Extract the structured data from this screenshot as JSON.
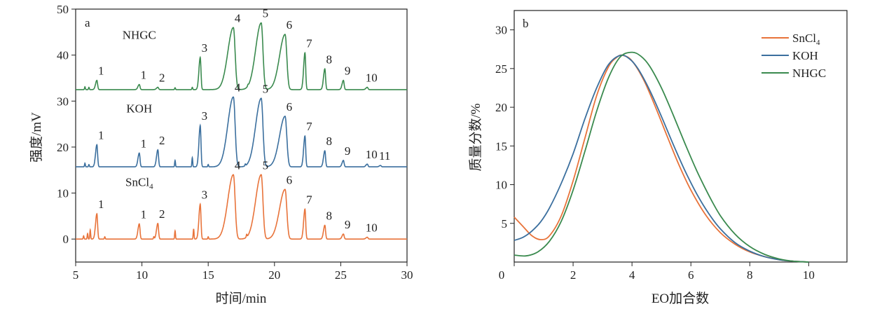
{
  "chart_data": [
    {
      "type": "line",
      "panel": "a",
      "xlabel": "时间/min",
      "ylabel": "强度/mV",
      "xlim": [
        5,
        30
      ],
      "ylim": [
        -5,
        50
      ],
      "xticks": [
        "5",
        "10",
        "15",
        "20",
        "25",
        "30"
      ],
      "yticks": [
        "0",
        "10",
        "20",
        "30",
        "40",
        "50"
      ],
      "series": [
        {
          "name": "NHGC",
          "color": "#3a8a4e",
          "baseline": 32.5,
          "peaks": [
            {
              "label": "1",
              "x": 6.6,
              "height": 2.0
            },
            {
              "label": "1",
              "x": 9.8,
              "height": 1.1
            },
            {
              "label": "2",
              "x": 11.2,
              "height": 0.5
            },
            {
              "label": "3",
              "x": 14.4,
              "height": 7.0
            },
            {
              "label": "4",
              "x": 16.9,
              "height": 13.5
            },
            {
              "label": "5",
              "x": 19.0,
              "height": 14.5
            },
            {
              "label": "6",
              "x": 20.8,
              "height": 12.0
            },
            {
              "label": "7",
              "x": 22.3,
              "height": 8.0
            },
            {
              "label": "8",
              "x": 23.8,
              "height": 4.5
            },
            {
              "label": "9",
              "x": 25.2,
              "height": 2.0
            },
            {
              "label": "10",
              "x": 27.0,
              "height": 0.5
            }
          ],
          "minor": [
            {
              "x": 5.7,
              "h": 0.6
            },
            {
              "x": 6.0,
              "h": 0.5
            },
            {
              "x": 12.5,
              "h": 0.4
            },
            {
              "x": 13.8,
              "h": 0.5
            },
            {
              "x": 18.0,
              "h": 0.3
            }
          ]
        },
        {
          "name": "KOH",
          "color": "#3b6f9e",
          "baseline": 15.7,
          "peaks": [
            {
              "label": "1",
              "x": 6.6,
              "height": 4.8
            },
            {
              "label": "1",
              "x": 9.8,
              "height": 3.0
            },
            {
              "label": "2",
              "x": 11.2,
              "height": 3.7
            },
            {
              "label": "3",
              "x": 14.4,
              "height": 9.0
            },
            {
              "label": "4",
              "x": 16.9,
              "height": 15.2
            },
            {
              "label": "5",
              "x": 19.0,
              "height": 14.9
            },
            {
              "label": "6",
              "x": 20.8,
              "height": 11.0
            },
            {
              "label": "7",
              "x": 22.3,
              "height": 6.7
            },
            {
              "label": "8",
              "x": 23.8,
              "height": 3.5
            },
            {
              "label": "9",
              "x": 25.2,
              "height": 1.4
            },
            {
              "label": "10",
              "x": 27.0,
              "height": 0.6
            },
            {
              "label": "11",
              "x": 28.0,
              "height": 0.3
            }
          ],
          "minor": [
            {
              "x": 5.7,
              "h": 0.8
            },
            {
              "x": 6.0,
              "h": 0.5
            },
            {
              "x": 12.5,
              "h": 1.4
            },
            {
              "x": 13.8,
              "h": 2.0
            },
            {
              "x": 15.0,
              "h": 0.5
            },
            {
              "x": 17.8,
              "h": 0.4
            }
          ]
        },
        {
          "name": "SnCl4",
          "color": "#e8733a",
          "baseline": 0.0,
          "peaks": [
            {
              "label": "1",
              "x": 6.6,
              "height": 5.5
            },
            {
              "label": "1",
              "x": 9.8,
              "height": 3.3
            },
            {
              "label": "2",
              "x": 11.2,
              "height": 3.4
            },
            {
              "label": "3",
              "x": 14.4,
              "height": 7.6
            },
            {
              "label": "4",
              "x": 16.9,
              "height": 14.0
            },
            {
              "label": "5",
              "x": 19.0,
              "height": 14.0
            },
            {
              "label": "6",
              "x": 20.8,
              "height": 10.8
            },
            {
              "label": "7",
              "x": 22.3,
              "height": 6.5
            },
            {
              "label": "8",
              "x": 23.8,
              "height": 3.0
            },
            {
              "label": "9",
              "x": 25.2,
              "height": 1.1
            },
            {
              "label": "10",
              "x": 27.0,
              "height": 0.4
            }
          ],
          "minor": [
            {
              "x": 5.6,
              "h": 0.7
            },
            {
              "x": 5.9,
              "h": 1.2
            },
            {
              "x": 6.1,
              "h": 2.0
            },
            {
              "x": 7.2,
              "h": 0.5
            },
            {
              "x": 10.9,
              "h": 0.5
            },
            {
              "x": 12.5,
              "h": 1.8
            },
            {
              "x": 13.9,
              "h": 2.2
            },
            {
              "x": 15.0,
              "h": 0.5
            },
            {
              "x": 17.9,
              "h": 0.6
            }
          ]
        }
      ],
      "series_labels": [
        {
          "text": "NHGC",
          "x": 9.8,
          "y": 43.5
        },
        {
          "text": "KOH",
          "x": 9.8,
          "y": 27.5
        },
        {
          "text": "SnCl",
          "subscript": "4",
          "x": 9.8,
          "y": 11.5
        }
      ]
    },
    {
      "type": "line",
      "panel": "b",
      "xlabel": "EO加合数",
      "ylabel": "质量分数/%",
      "xlim": [
        0,
        11.3
      ],
      "ylim": [
        0,
        32.5
      ],
      "xticks": [
        "0",
        "2",
        "4",
        "6",
        "8",
        "10"
      ],
      "yticks": [
        "5",
        "10",
        "15",
        "20",
        "25",
        "30"
      ],
      "legend_position": "top-right",
      "legend": [
        {
          "name": "SnCl",
          "subscript": "4",
          "color": "#e8733a"
        },
        {
          "name": "KOH",
          "color": "#3b6f9e"
        },
        {
          "name": "NHGC",
          "color": "#3a8a4e"
        }
      ],
      "series": [
        {
          "name": "SnCl4",
          "color": "#e8733a",
          "x": [
            0,
            0.3,
            0.6,
            0.9,
            1.2,
            1.6,
            2.0,
            2.4,
            2.8,
            3.2,
            3.5,
            3.7,
            4.0,
            4.4,
            4.8,
            5.2,
            5.6,
            6.0,
            6.5,
            7.0,
            7.5,
            8.0,
            8.5,
            9.0,
            9.5,
            10.0
          ],
          "y": [
            5.8,
            4.6,
            3.4,
            2.9,
            3.4,
            6.0,
            10.5,
            16.0,
            21.5,
            25.2,
            26.5,
            26.7,
            26.0,
            23.5,
            20.0,
            16.2,
            12.5,
            9.3,
            6.1,
            3.8,
            2.3,
            1.3,
            0.7,
            0.3,
            0.1,
            0.0
          ]
        },
        {
          "name": "KOH",
          "color": "#3b6f9e",
          "x": [
            0,
            0.3,
            0.6,
            0.9,
            1.2,
            1.6,
            2.0,
            2.4,
            2.8,
            3.2,
            3.6,
            3.9,
            4.2,
            4.6,
            5.0,
            5.4,
            5.8,
            6.2,
            6.6,
            7.0,
            7.5,
            8.0,
            8.5,
            9.0,
            9.5,
            10.0
          ],
          "y": [
            2.8,
            3.2,
            4.0,
            5.2,
            7.0,
            10.2,
            14.0,
            18.5,
            22.5,
            25.5,
            26.7,
            26.3,
            25.0,
            22.2,
            18.8,
            15.2,
            11.8,
            8.8,
            6.3,
            4.3,
            2.5,
            1.4,
            0.7,
            0.3,
            0.1,
            0.0
          ]
        },
        {
          "name": "NHGC",
          "color": "#3a8a4e",
          "x": [
            0,
            0.4,
            0.8,
            1.2,
            1.6,
            2.0,
            2.4,
            2.8,
            3.2,
            3.6,
            4.0,
            4.3,
            4.6,
            5.0,
            5.4,
            5.8,
            6.2,
            6.6,
            7.0,
            7.5,
            8.0,
            8.5,
            9.0,
            9.5,
            10.0
          ],
          "y": [
            0.9,
            0.8,
            1.3,
            2.7,
            5.3,
            9.3,
            14.3,
            19.5,
            23.8,
            26.5,
            27.1,
            26.6,
            25.3,
            22.5,
            19.0,
            15.3,
            11.8,
            8.7,
            6.0,
            3.6,
            2.0,
            1.0,
            0.4,
            0.1,
            0.0
          ]
        }
      ]
    }
  ]
}
